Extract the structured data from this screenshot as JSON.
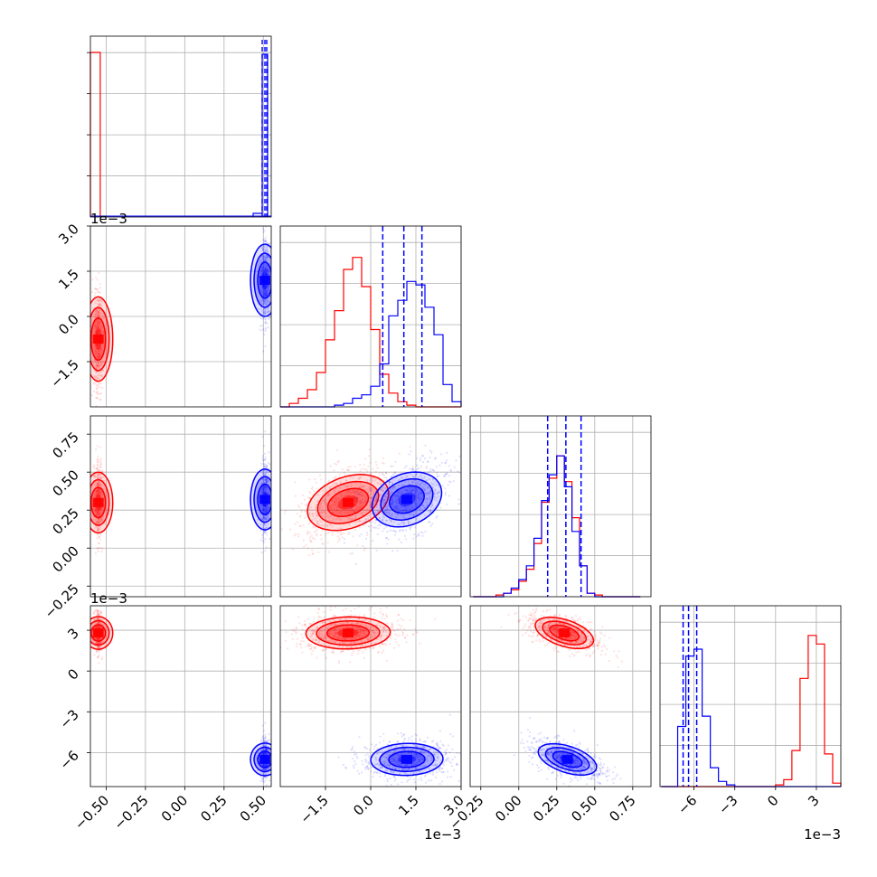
{
  "chart_data": {
    "type": "corner",
    "description_colors": {
      "series_a": "#ff0000",
      "series_b": "#0000ff"
    },
    "series": [
      {
        "color": "#ff0000",
        "p0": -0.55,
        "p1_mean": -0.00075,
        "p1_sd": 0.0007,
        "p2_mean": 0.3,
        "p2_sd": 0.1,
        "p3_mean": 0.0028,
        "p3_sd": 0.0006
      },
      {
        "color": "#0000ff",
        "p0": 0.51,
        "p1_mean": 0.0012,
        "p1_sd": 0.0006,
        "p2_mean": 0.32,
        "p2_sd": 0.1,
        "p3_mean": -0.0065,
        "p3_sd": 0.0006
      }
    ],
    "quantiles": {
      "param1": [
        0.0004,
        0.0011,
        0.0017
      ],
      "param2": [
        0.19,
        0.31,
        0.41
      ],
      "param3": [
        -0.0068,
        -0.0064,
        -0.0058
      ]
    },
    "params": [
      {
        "range": [
          -0.6,
          0.55
        ],
        "ticks": [
          -0.5,
          -0.25,
          0.0,
          0.25,
          0.5
        ],
        "tick_labels": [
          "−0.50",
          "−0.25",
          "0.00",
          "0.25",
          "0.50"
        ],
        "offset": ""
      },
      {
        "range": [
          -0.003,
          0.003
        ],
        "ticks": [
          -0.0015,
          0.0,
          0.0015,
          0.003
        ],
        "tick_labels": [
          "−1.5",
          "0.0",
          "1.5",
          "3.0"
        ],
        "offset": "1e−3"
      },
      {
        "range": [
          -0.32,
          0.87
        ],
        "ticks": [
          -0.25,
          0.0,
          0.25,
          0.5,
          0.75
        ],
        "tick_labels": [
          "−0.25",
          "0.00",
          "0.25",
          "0.50",
          "0.75"
        ],
        "offset": ""
      },
      {
        "range": [
          -0.0085,
          0.0048
        ],
        "ticks": [
          -0.006,
          -0.003,
          0.0,
          0.003
        ],
        "tick_labels": [
          "−6",
          "−3",
          "0",
          "3"
        ],
        "offset": "1e−3"
      }
    ],
    "hist_counts": {
      "param0": {
        "red": [
          1.0
        ],
        "blue": [
          1.0
        ]
      },
      "param1": {
        "edges": [
          -0.003,
          -0.0027,
          -0.0024,
          -0.0021,
          -0.0018,
          -0.0015,
          -0.0012,
          -0.0009,
          -0.0006,
          -0.0003,
          0.0,
          0.0003,
          0.0006,
          0.0009,
          0.0012,
          0.0015,
          0.0018,
          0.0021,
          0.0024,
          0.0027,
          0.003
        ],
        "red": [
          0.0,
          0.02,
          0.05,
          0.1,
          0.2,
          0.39,
          0.56,
          0.8,
          0.87,
          0.7,
          0.45,
          0.19,
          0.08,
          0.03,
          0.01,
          0.0,
          0.0,
          0.0,
          0.0,
          0.0
        ],
        "blue": [
          0.0,
          0.0,
          0.0,
          0.0,
          0.0,
          0.0,
          0.01,
          0.02,
          0.05,
          0.07,
          0.12,
          0.25,
          0.53,
          0.62,
          0.73,
          0.71,
          0.58,
          0.42,
          0.13,
          0.03
        ]
      },
      "param2": {
        "edges": [
          -0.3,
          -0.25,
          -0.2,
          -0.15,
          -0.1,
          -0.05,
          0.0,
          0.05,
          0.1,
          0.15,
          0.2,
          0.25,
          0.3,
          0.35,
          0.4,
          0.45,
          0.5,
          0.55,
          0.6,
          0.65,
          0.7,
          0.75,
          0.8
        ],
        "red": [
          0.0,
          0.0,
          0.0,
          0.01,
          0.02,
          0.04,
          0.09,
          0.16,
          0.31,
          0.55,
          0.69,
          0.82,
          0.67,
          0.46,
          0.18,
          0.02,
          0.01,
          0.0,
          0.0,
          0.0,
          0.0,
          0.0
        ],
        "blue": [
          0.0,
          0.0,
          0.0,
          0.0,
          0.02,
          0.05,
          0.1,
          0.18,
          0.34,
          0.56,
          0.71,
          0.82,
          0.64,
          0.38,
          0.18,
          0.02,
          0.0,
          0.0,
          0.0,
          0.0,
          0.0,
          0.0
        ]
      },
      "param3": {
        "edges": [
          -0.0084,
          -0.0078,
          -0.0072,
          -0.0066,
          -0.006,
          -0.0054,
          -0.0048,
          -0.0042,
          -0.0036,
          -0.003,
          -0.0024,
          -0.0018,
          -0.0012,
          -0.0006,
          0.0,
          0.0006,
          0.0012,
          0.0018,
          0.0024,
          0.003,
          0.0036,
          0.0042,
          0.0048
        ],
        "red": [
          0.0,
          0.0,
          0.0,
          0.0,
          0.0,
          0.0,
          0.0,
          0.0,
          0.0,
          0.0,
          0.0,
          0.0,
          0.0,
          0.0,
          0.01,
          0.04,
          0.21,
          0.63,
          0.88,
          0.83,
          0.19,
          0.02
        ],
        "blue": [
          0.0,
          0.0,
          0.35,
          0.76,
          0.8,
          0.41,
          0.11,
          0.03,
          0.01,
          0.0,
          0.0,
          0.0,
          0.0,
          0.0,
          0.0,
          0.0,
          0.0,
          0.0,
          0.0,
          0.0,
          0.0,
          0.0
        ]
      }
    },
    "grid": true,
    "ylabel_offset_texts": [
      "1e−3",
      "1e−3"
    ],
    "xlabel_offset_texts": [
      "1e−3",
      "1e−3"
    ]
  }
}
